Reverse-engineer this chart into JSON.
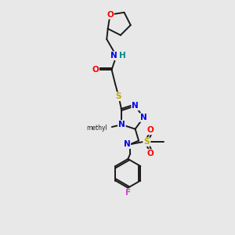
{
  "bg_color": "#e8e8e8",
  "bond_color": "#1a1a1a",
  "atom_colors": {
    "O": "#ff0000",
    "N": "#0000ee",
    "S": "#bbaa00",
    "F": "#cc44cc",
    "H": "#008888",
    "C": "#1a1a1a"
  },
  "lw": 1.4,
  "fontsize": 7.5
}
